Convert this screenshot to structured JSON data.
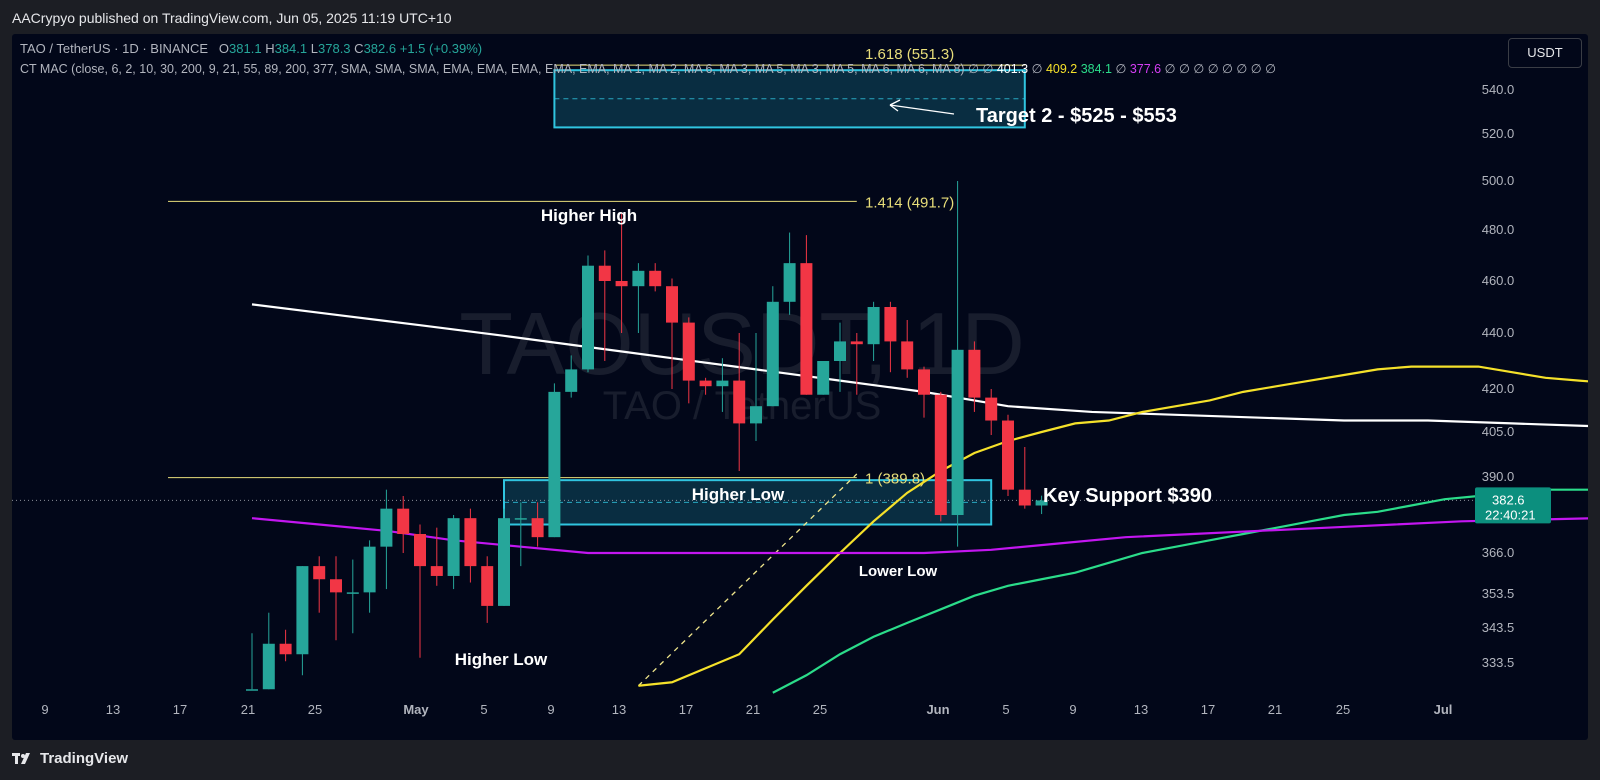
{
  "header": {
    "publisher": "AACrypyo published on TradingView.com, Jun 05, 2025 11:19 UTC+10"
  },
  "legend": {
    "symbol": "TAO / TetherUS · 1D · BINANCE",
    "o_label": "O",
    "o": "381.1",
    "h_label": "H",
    "h": "384.1",
    "l_label": "L",
    "l": "378.3",
    "c_label": "C",
    "c": "382.6",
    "change": "+1.5 (+0.39%)",
    "indicator": "CT MAC (close, 6, 2, 10, 30, 200, 9, 21, 55, 89, 200, 377, SMA, SMA, SMA, EMA, EMA, EMA, EMA, EMA, MA 1, MA 2, MA 6, MA 3, MA 5, MA 3, MA 5, MA 6, MA 6, MA 8)",
    "ind_null": "∅ ∅",
    "ind_v1": "401.3",
    "ind_v2": "409.2",
    "ind_v3": "384.1",
    "ind_v4": "377.6",
    "ind_tail": "∅ ∅ ∅ ∅ ∅ ∅ ∅ ∅"
  },
  "currency_button": "USDT",
  "watermark": {
    "main": "TAOUSDT, 1D",
    "sub": "TAO / TetherUS"
  },
  "footer": {
    "brand": "TradingView"
  },
  "colors": {
    "background": "#020719",
    "up": "#26a69a",
    "down": "#f23645",
    "ma_white": "#ffffff",
    "ma_yellow": "#f5e12a",
    "ma_green": "#2bdc8a",
    "ma_magenta": "#c316f0",
    "zone": "#30c5e0"
  },
  "chart_data": {
    "type": "candlestick",
    "y_axis_ticks": [
      540.0,
      520.0,
      500.0,
      480.0,
      460.0,
      440.0,
      420.0,
      405.0,
      390.0,
      366.0,
      353.5,
      343.5,
      333.5
    ],
    "x_axis_ticks": [
      "9",
      "13",
      "17",
      "21",
      "25",
      "May",
      "5",
      "9",
      "13",
      "17",
      "21",
      "25",
      "Jun",
      "5",
      "9",
      "13",
      "17",
      "21",
      "25",
      "Jul"
    ],
    "price_label": {
      "value": "382.6",
      "countdown": "22:40:21"
    },
    "candles": [
      {
        "o": 326,
        "h": 342,
        "l": 326,
        "c": 326
      },
      {
        "o": 326,
        "h": 348,
        "l": 326,
        "c": 339
      },
      {
        "o": 339,
        "h": 343,
        "l": 334,
        "c": 336
      },
      {
        "o": 336,
        "h": 362,
        "l": 330,
        "c": 362
      },
      {
        "o": 362,
        "h": 365,
        "l": 348,
        "c": 358
      },
      {
        "o": 358,
        "h": 365,
        "l": 340,
        "c": 354
      },
      {
        "o": 354,
        "h": 364,
        "l": 342,
        "c": 354
      },
      {
        "o": 354,
        "h": 370,
        "l": 348,
        "c": 368
      },
      {
        "o": 368,
        "h": 386,
        "l": 355,
        "c": 380
      },
      {
        "o": 380,
        "h": 384,
        "l": 366,
        "c": 372
      },
      {
        "o": 372,
        "h": 375,
        "l": 335,
        "c": 362
      },
      {
        "o": 362,
        "h": 374,
        "l": 356,
        "c": 359
      },
      {
        "o": 359,
        "h": 378,
        "l": 355,
        "c": 377
      },
      {
        "o": 377,
        "h": 380,
        "l": 357,
        "c": 362
      },
      {
        "o": 362,
        "h": 365,
        "l": 345,
        "c": 350
      },
      {
        "o": 350,
        "h": 380,
        "l": 350,
        "c": 377
      },
      {
        "o": 377,
        "h": 382,
        "l": 362,
        "c": 377
      },
      {
        "o": 377,
        "h": 382,
        "l": 368,
        "c": 371
      },
      {
        "o": 371,
        "h": 422,
        "l": 371,
        "c": 419
      },
      {
        "o": 419,
        "h": 432,
        "l": 417,
        "c": 427
      },
      {
        "o": 427,
        "h": 470,
        "l": 426,
        "c": 466
      },
      {
        "o": 466,
        "h": 472,
        "l": 430,
        "c": 460
      },
      {
        "o": 460,
        "h": 487,
        "l": 440,
        "c": 458
      },
      {
        "o": 458,
        "h": 467,
        "l": 440,
        "c": 464
      },
      {
        "o": 464,
        "h": 467,
        "l": 456,
        "c": 458
      },
      {
        "o": 458,
        "h": 461,
        "l": 420,
        "c": 444
      },
      {
        "o": 444,
        "h": 446,
        "l": 415,
        "c": 423
      },
      {
        "o": 423,
        "h": 424,
        "l": 418,
        "c": 421
      },
      {
        "o": 421,
        "h": 431,
        "l": 412,
        "c": 423
      },
      {
        "o": 423,
        "h": 440,
        "l": 392,
        "c": 408
      },
      {
        "o": 408,
        "h": 440,
        "l": 402,
        "c": 414
      },
      {
        "o": 414,
        "h": 458,
        "l": 414,
        "c": 452
      },
      {
        "o": 452,
        "h": 479,
        "l": 447,
        "c": 467
      },
      {
        "o": 467,
        "h": 478,
        "l": 418,
        "c": 418
      },
      {
        "o": 418,
        "h": 430,
        "l": 418,
        "c": 430
      },
      {
        "o": 430,
        "h": 444,
        "l": 419,
        "c": 437
      },
      {
        "o": 437,
        "h": 440,
        "l": 418,
        "c": 436
      },
      {
        "o": 436,
        "h": 452,
        "l": 430,
        "c": 450
      },
      {
        "o": 450,
        "h": 452,
        "l": 426,
        "c": 437
      },
      {
        "o": 437,
        "h": 445,
        "l": 424,
        "c": 427
      },
      {
        "o": 427,
        "h": 428,
        "l": 410,
        "c": 418
      },
      {
        "o": 418,
        "h": 419,
        "l": 376,
        "c": 378
      },
      {
        "o": 378,
        "h": 500,
        "l": 368,
        "c": 434
      },
      {
        "o": 434,
        "h": 437,
        "l": 412,
        "c": 417
      },
      {
        "o": 417,
        "h": 420,
        "l": 404,
        "c": 409
      },
      {
        "o": 409,
        "h": 411,
        "l": 384,
        "c": 386
      },
      {
        "o": 386,
        "h": 400,
        "l": 380,
        "c": 381
      },
      {
        "o": 381,
        "h": 384.1,
        "l": 378.3,
        "c": 382.6
      }
    ],
    "moving_averages": [
      {
        "points": [
          [
            0,
            451
          ],
          [
            5,
            447
          ],
          [
            10,
            443
          ],
          [
            15,
            439
          ],
          [
            20,
            435
          ],
          [
            25,
            431
          ],
          [
            30,
            427
          ],
          [
            35,
            423
          ],
          [
            40,
            419
          ],
          [
            45,
            414
          ],
          [
            50,
            412
          ],
          [
            55,
            411
          ],
          [
            60,
            410
          ],
          [
            65,
            409
          ],
          [
            70,
            409
          ],
          [
            75,
            408
          ],
          [
            80,
            407
          ],
          [
            85,
            406
          ],
          [
            87,
            405
          ],
          [
            90,
            404
          ],
          [
            95,
            403
          ],
          [
            98,
            401
          ]
        ]
      },
      {
        "points": [
          [
            23,
            327
          ],
          [
            25,
            328
          ],
          [
            27,
            332
          ],
          [
            29,
            336
          ],
          [
            31,
            346
          ],
          [
            33,
            356
          ],
          [
            35,
            366
          ],
          [
            37,
            376
          ],
          [
            39,
            385
          ],
          [
            41,
            392
          ],
          [
            43,
            398
          ],
          [
            45,
            402
          ],
          [
            47,
            405
          ],
          [
            49,
            408
          ],
          [
            51,
            409
          ],
          [
            53,
            412
          ],
          [
            55,
            414
          ],
          [
            57,
            416
          ],
          [
            59,
            419
          ],
          [
            61,
            421
          ],
          [
            63,
            423
          ],
          [
            65,
            425
          ],
          [
            67,
            427
          ],
          [
            69,
            428
          ],
          [
            71,
            428
          ],
          [
            73,
            428
          ],
          [
            75,
            426
          ],
          [
            77,
            424
          ],
          [
            79,
            423
          ],
          [
            81,
            422
          ],
          [
            83,
            421
          ],
          [
            85,
            420
          ],
          [
            87,
            418
          ],
          [
            90,
            415
          ],
          [
            93,
            412
          ],
          [
            96,
            409
          ],
          [
            98,
            409.2
          ]
        ]
      },
      {
        "points": [
          [
            31,
            325
          ],
          [
            33,
            330
          ],
          [
            35,
            336
          ],
          [
            37,
            341
          ],
          [
            39,
            345
          ],
          [
            41,
            349
          ],
          [
            43,
            353
          ],
          [
            45,
            356
          ],
          [
            47,
            358
          ],
          [
            49,
            360
          ],
          [
            51,
            363
          ],
          [
            53,
            366
          ],
          [
            55,
            368
          ],
          [
            57,
            370
          ],
          [
            59,
            372
          ],
          [
            61,
            374
          ],
          [
            63,
            376
          ],
          [
            65,
            378
          ],
          [
            67,
            379
          ],
          [
            69,
            381
          ],
          [
            71,
            383
          ],
          [
            73,
            384
          ],
          [
            75,
            385
          ],
          [
            77,
            386
          ],
          [
            79,
            386
          ],
          [
            81,
            386
          ],
          [
            83,
            385
          ],
          [
            85,
            385
          ],
          [
            87,
            384.5
          ],
          [
            90,
            384.2
          ],
          [
            93,
            384
          ],
          [
            96,
            384.1
          ],
          [
            98,
            384.1
          ]
        ]
      },
      {
        "points": [
          [
            0,
            377
          ],
          [
            4,
            375
          ],
          [
            8,
            373
          ],
          [
            12,
            370
          ],
          [
            16,
            368
          ],
          [
            20,
            366
          ],
          [
            24,
            366
          ],
          [
            28,
            366
          ],
          [
            32,
            366
          ],
          [
            36,
            366
          ],
          [
            40,
            366
          ],
          [
            44,
            367
          ],
          [
            48,
            369
          ],
          [
            52,
            371
          ],
          [
            56,
            372
          ],
          [
            60,
            373
          ],
          [
            64,
            374
          ],
          [
            68,
            375
          ],
          [
            72,
            376
          ],
          [
            76,
            376.5
          ],
          [
            80,
            377
          ],
          [
            84,
            377
          ],
          [
            88,
            377.5
          ],
          [
            92,
            377.6
          ],
          [
            96,
            377.6
          ],
          [
            98,
            377.6
          ]
        ]
      }
    ],
    "zones": [
      {
        "x0": 18,
        "x1": 46,
        "y0": 523,
        "y1": 549
      },
      {
        "x0": 15,
        "x1": 44,
        "y0": 375,
        "y1": 389
      }
    ],
    "fib_levels": [
      {
        "label": "1.618 (551.3)",
        "value": 551.3
      },
      {
        "label": "1.414 (491.7)",
        "value": 491.7
      },
      {
        "label": "1 (389.8)",
        "value": 389.8
      }
    ],
    "annotations": [
      {
        "text": "Target 2 - $525 - $553"
      },
      {
        "text": "Higher High"
      },
      {
        "text": "Higher Low"
      },
      {
        "text": "Higher Low"
      },
      {
        "text": "Lower Low"
      },
      {
        "text": "Key Support $390"
      }
    ]
  }
}
